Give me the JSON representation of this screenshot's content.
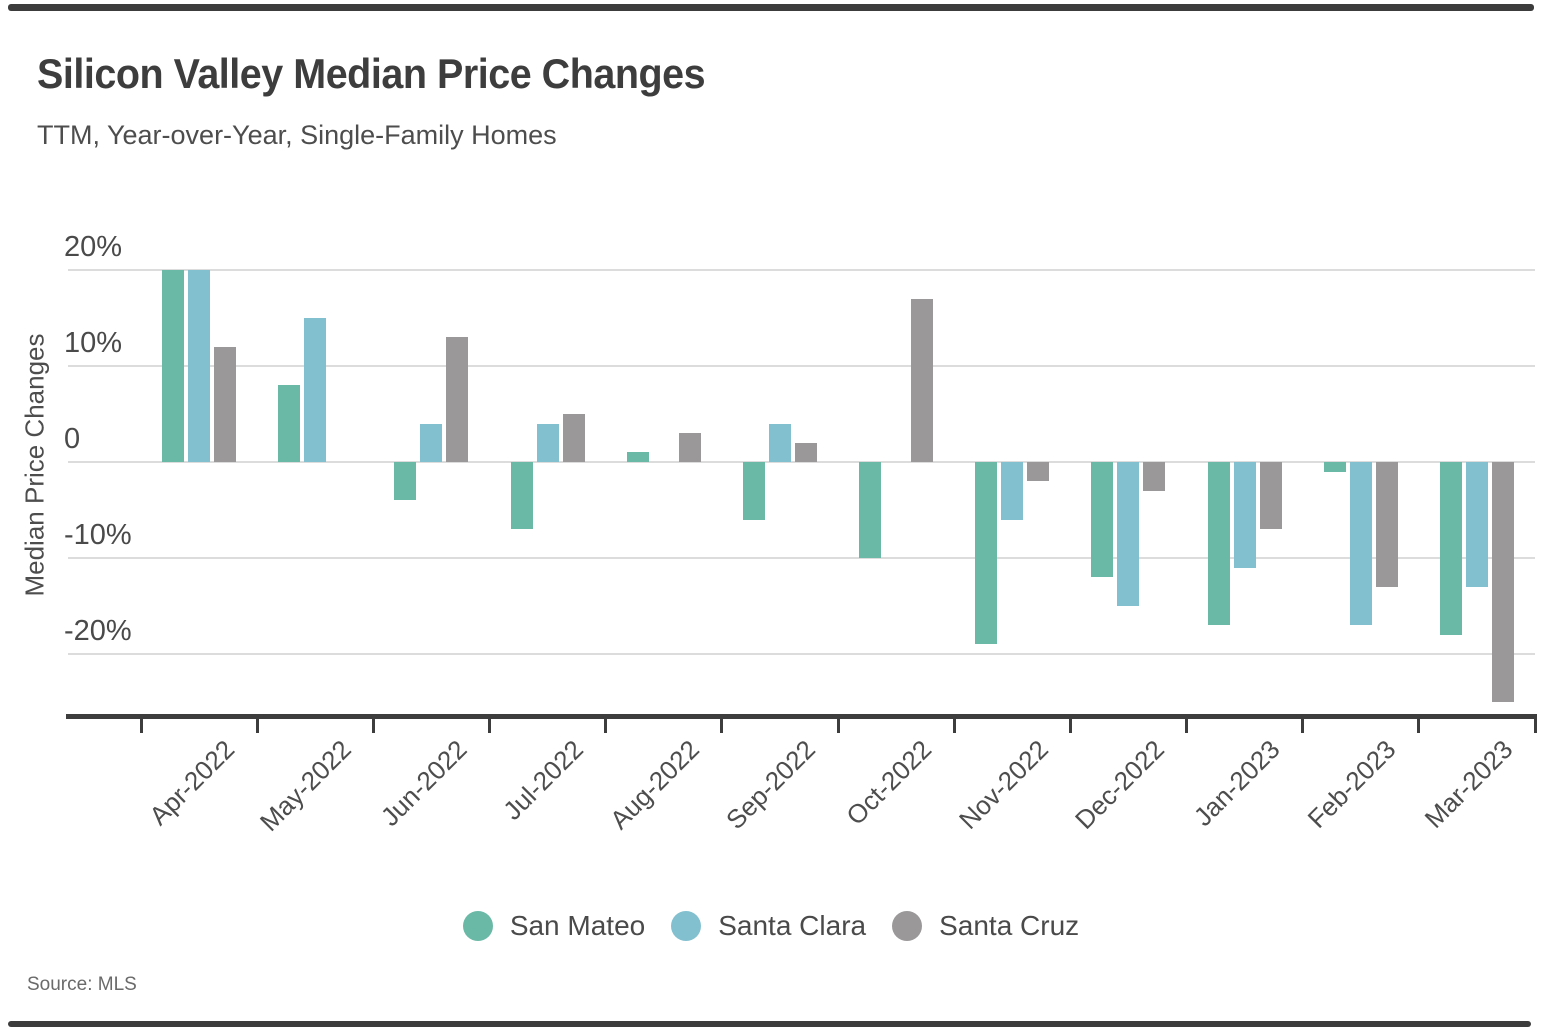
{
  "chart_data": {
    "type": "bar",
    "title": "Silicon Valley Median Price Changes",
    "subtitle": "TTM, Year-over-Year, Single-Family Homes",
    "ylabel": "Median Price Changes",
    "xlabel": "",
    "units": "percent",
    "categories": [
      "Apr-2022",
      "May-2022",
      "Jun-2022",
      "Jul-2022",
      "Aug-2022",
      "Sep-2022",
      "Oct-2022",
      "Nov-2022",
      "Dec-2022",
      "Jan-2023",
      "Feb-2023",
      "Mar-2023"
    ],
    "series": [
      {
        "name": "San Mateo",
        "color": "#6ab9a6",
        "values": [
          20,
          8,
          -4,
          -7,
          1,
          -6,
          -10,
          -19,
          -12,
          -17,
          -1,
          -18
        ]
      },
      {
        "name": "Santa Clara",
        "color": "#82c0d0",
        "values": [
          20,
          15,
          4,
          4,
          null,
          4,
          null,
          -6,
          -15,
          -11,
          -17,
          -13
        ]
      },
      {
        "name": "Santa Cruz",
        "color": "#9a9899",
        "values": [
          12,
          null,
          13,
          5,
          3,
          2,
          17,
          -2,
          -3,
          -7,
          -13,
          -25
        ]
      }
    ],
    "yticks": [
      {
        "value": 20,
        "label": "20%"
      },
      {
        "value": 10,
        "label": "10%"
      },
      {
        "value": 0,
        "label": "0"
      },
      {
        "value": -10,
        "label": "-10%"
      },
      {
        "value": -20,
        "label": "-20%"
      }
    ],
    "ylim": [
      -26.5,
      24
    ],
    "grid": true,
    "legend_position": "bottom",
    "source": "Source: MLS"
  },
  "colors": {
    "axis": "#3d3d3d",
    "gridline": "#dcdcdc",
    "title_text": "#3d3d3d",
    "label_text": "#4d4d4d"
  }
}
